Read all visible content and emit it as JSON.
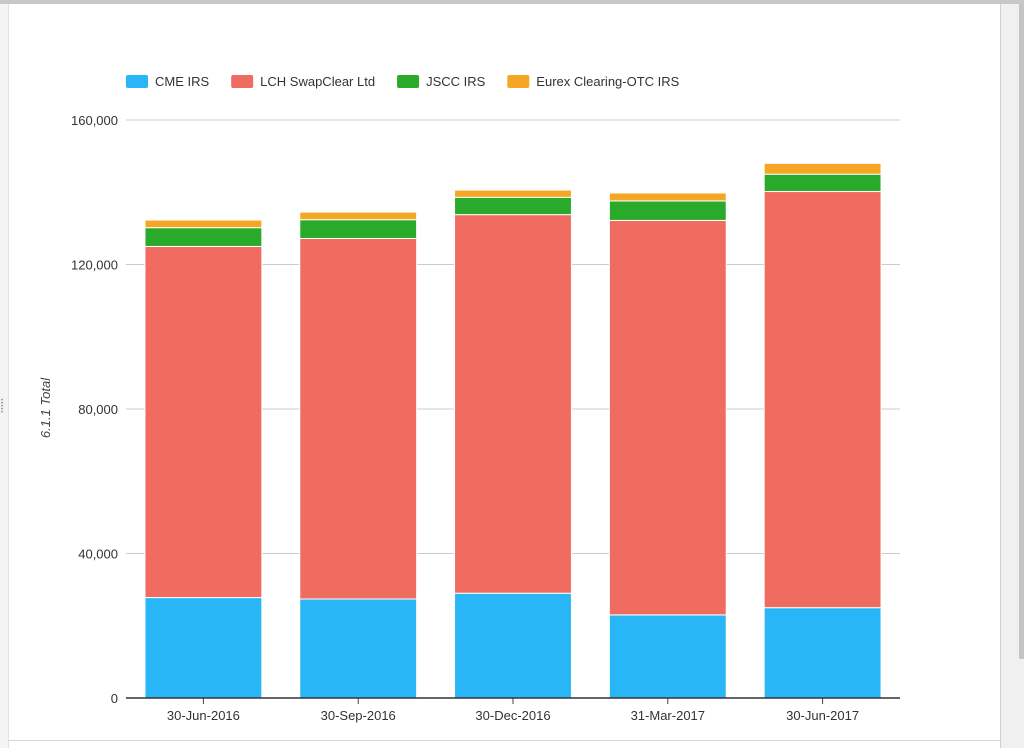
{
  "chart_data": {
    "type": "bar",
    "stacked": true,
    "categories": [
      "30-Jun-2016",
      "30-Sep-2016",
      "30-Dec-2016",
      "31-Mar-2017",
      "30-Jun-2017"
    ],
    "series": [
      {
        "name": "CME IRS",
        "color": "#29b6f6",
        "values": [
          27800,
          27400,
          29000,
          23000,
          25000
        ]
      },
      {
        "name": "LCH SwapClear Ltd",
        "color": "#f06b60",
        "values": [
          97200,
          99800,
          104800,
          109200,
          115200
        ]
      },
      {
        "name": "JSCC IRS",
        "color": "#2aaa2a",
        "values": [
          5200,
          5200,
          4800,
          5400,
          4800
        ]
      },
      {
        "name": "Eurex Clearing-OTC IRS",
        "color": "#f5a623",
        "values": [
          2100,
          2100,
          2000,
          2200,
          3000
        ]
      }
    ],
    "ylabel": "6.1.1 Total",
    "xlabel": "",
    "ylim": [
      0,
      160000
    ],
    "yticks": [
      0,
      40000,
      80000,
      120000,
      160000
    ],
    "ytick_labels": [
      "0",
      "40,000",
      "80,000",
      "120,000",
      "160,000"
    ],
    "grid": true,
    "legend_position": "top-left"
  }
}
